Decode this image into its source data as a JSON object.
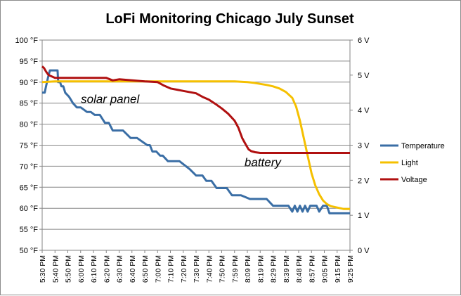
{
  "chart_data": {
    "type": "line",
    "title": "LoFi Monitoring Chicago July Sunset",
    "x_ticks": [
      "5:30 PM",
      "5:40 PM",
      "5:50 PM",
      "6:00 PM",
      "6:10 PM",
      "6:20 PM",
      "6:30 PM",
      "6:40 PM",
      "6:50 PM",
      "7:00 PM",
      "7:10 PM",
      "7:20 PM",
      "7:30 PM",
      "7:40 PM",
      "7:50 PM",
      "7:59 PM",
      "8:09 PM",
      "8:19 PM",
      "8:29 PM",
      "8:39 PM",
      "8:48 PM",
      "8:57 PM",
      "9:05 PM",
      "9:15 PM",
      "9:25 PM"
    ],
    "x_range": [
      0,
      24
    ],
    "y_left": {
      "range": [
        50,
        100
      ],
      "step": 5,
      "unit": "°F",
      "tick_labels": [
        "50 °F",
        "55 °F",
        "60 °F",
        "65 °F",
        "70 °F",
        "75 °F",
        "80 °F",
        "85 °F",
        "90 °F",
        "95 °F",
        "100 °F"
      ]
    },
    "y_right": {
      "range": [
        0,
        6
      ],
      "step": 1,
      "tick_labels": [
        "0 V",
        "1 V",
        "2 V",
        "3 V",
        "4 V",
        "5 V",
        "6 V"
      ]
    },
    "grid": "horizontal",
    "legend_position": "right",
    "series": [
      {
        "name": "Temperature",
        "axis": "left",
        "color": "#3a6ea5",
        "x": [
          0,
          0.2,
          0.3,
          0.45,
          0.6,
          0.8,
          1.2,
          1.25,
          1.4,
          1.5,
          1.65,
          1.8,
          2.1,
          2.4,
          2.7,
          3.0,
          3.5,
          3.8,
          4.1,
          4.5,
          4.9,
          5.2,
          5.5,
          6.3,
          6.9,
          7.4,
          8.2,
          8.4,
          8.6,
          8.9,
          9.2,
          9.4,
          9.8,
          10.0,
          10.4,
          10.7,
          11.5,
          12.0,
          12.5,
          12.8,
          13.2,
          13.6,
          14.2,
          14.4,
          14.8,
          15.5,
          16.2,
          16.8,
          17.5,
          18.0,
          19.2,
          19.5,
          19.7,
          19.9,
          20.1,
          20.3,
          20.5,
          20.7,
          20.9,
          21.1,
          21.4,
          21.6,
          21.9,
          22.2,
          22.4,
          23.2,
          24.0
        ],
        "y": [
          87.5,
          87.5,
          89,
          91,
          92.8,
          92.8,
          92.8,
          90,
          90,
          89,
          89,
          87.5,
          86.5,
          85,
          84,
          84,
          82.9,
          82.9,
          82.2,
          82.2,
          80.3,
          80.3,
          78.5,
          78.5,
          76.7,
          76.7,
          75,
          75,
          73.5,
          73.5,
          72.5,
          72.5,
          71.2,
          71.2,
          71.2,
          71.2,
          69.3,
          67.8,
          67.8,
          66.5,
          66.5,
          64.8,
          64.8,
          64.8,
          63.1,
          63.1,
          62.2,
          62.2,
          62.2,
          60.6,
          60.6,
          59.2,
          60.6,
          59.2,
          60.6,
          59.2,
          60.6,
          59.2,
          60.6,
          60.6,
          60.6,
          59.2,
          60.6,
          60.6,
          58.8,
          58.8,
          58.8
        ]
      },
      {
        "name": "Light",
        "axis": "right",
        "color": "#f5c000",
        "x": [
          0,
          1,
          5,
          10,
          15,
          16,
          16.5,
          17,
          17.5,
          18,
          18.5,
          19,
          19.5,
          19.8,
          20.1,
          20.4,
          20.7,
          21.0,
          21.3,
          21.6,
          21.9,
          22.2,
          22.5,
          23.0,
          23.5,
          24.0
        ],
        "y": [
          4.8,
          4.82,
          4.82,
          4.82,
          4.82,
          4.8,
          4.78,
          4.75,
          4.72,
          4.68,
          4.62,
          4.52,
          4.35,
          4.1,
          3.7,
          3.2,
          2.7,
          2.2,
          1.85,
          1.6,
          1.42,
          1.32,
          1.26,
          1.22,
          1.18,
          1.18
        ]
      },
      {
        "name": "Voltage",
        "axis": "right",
        "color": "#b01010",
        "x": [
          0,
          0.15,
          0.3,
          0.5,
          1,
          3,
          5,
          5.5,
          6,
          7,
          8,
          9,
          9.5,
          10,
          11,
          12,
          12.5,
          13,
          13.5,
          14,
          14.5,
          15,
          15.3,
          15.6,
          15.9,
          16.1,
          16.3,
          16.6,
          17,
          18,
          20,
          22,
          24
        ],
        "y": [
          5.25,
          5.2,
          5.1,
          5.0,
          4.92,
          4.92,
          4.92,
          4.85,
          4.88,
          4.85,
          4.82,
          4.8,
          4.7,
          4.62,
          4.55,
          4.48,
          4.38,
          4.3,
          4.18,
          4.05,
          3.9,
          3.7,
          3.5,
          3.2,
          3.0,
          2.88,
          2.83,
          2.8,
          2.78,
          2.78,
          2.78,
          2.78,
          2.78
        ]
      }
    ],
    "annotations": [
      {
        "text": "solar panel",
        "x": 5.3,
        "y_right": 4.2
      },
      {
        "text": "battery",
        "x": 17.2,
        "y_right": 2.4
      }
    ]
  }
}
